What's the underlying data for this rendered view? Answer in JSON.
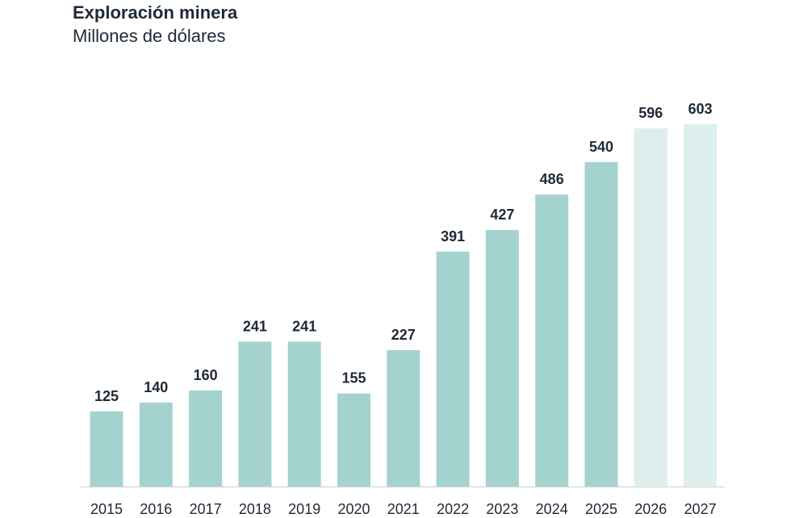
{
  "chart_data": {
    "type": "bar",
    "title": "Exploración minera",
    "subtitle": "Millones de dólares",
    "xlabel": "",
    "ylabel": "",
    "categories": [
      "2015",
      "2016",
      "2017",
      "2018",
      "2019",
      "2020",
      "2021",
      "2022",
      "2023",
      "2024",
      "2025",
      "2026",
      "2027"
    ],
    "values": [
      125,
      140,
      160,
      241,
      241,
      155,
      227,
      391,
      427,
      486,
      540,
      596,
      603
    ],
    "ylim": [
      0,
      603
    ],
    "grid": false,
    "legend": "none",
    "colors": {
      "actual": "#a4d3cf",
      "projected": "#ddefed",
      "axis": "#d9d9d9",
      "text": "#1f2a37"
    },
    "projected_categories": [
      "2026",
      "2027"
    ]
  }
}
